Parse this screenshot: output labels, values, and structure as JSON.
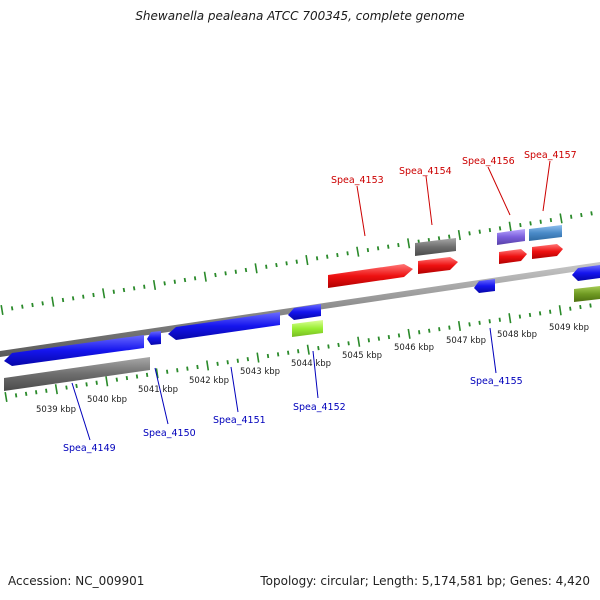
{
  "title": "Shewanella pealeana ATCC 700345, complete genome",
  "footer": {
    "accession": "Accession: NC_009901",
    "summary": "Topology: circular; Length: 5,174,581 bp; Genes: 4,420"
  },
  "colors": {
    "forward_label": "#cc0000",
    "reverse_label": "#0000bb",
    "tick": "#2a8a2a",
    "backbone": "#8f8f8f"
  },
  "kbp_labels": [
    "5039 kbp",
    "5040 kbp",
    "5041 kbp",
    "5042 kbp",
    "5043 kbp",
    "5044 kbp",
    "5045 kbp",
    "5046 kbp",
    "5047 kbp",
    "5048 kbp",
    "5049 kbp"
  ],
  "forward_gene_labels": [
    "Spea_4153",
    "Spea_4154",
    "Spea_4156",
    "Spea_4157"
  ],
  "reverse_gene_labels": [
    "Spea_4149",
    "Spea_4150",
    "Spea_4151",
    "Spea_4152",
    "Spea_4155"
  ]
}
